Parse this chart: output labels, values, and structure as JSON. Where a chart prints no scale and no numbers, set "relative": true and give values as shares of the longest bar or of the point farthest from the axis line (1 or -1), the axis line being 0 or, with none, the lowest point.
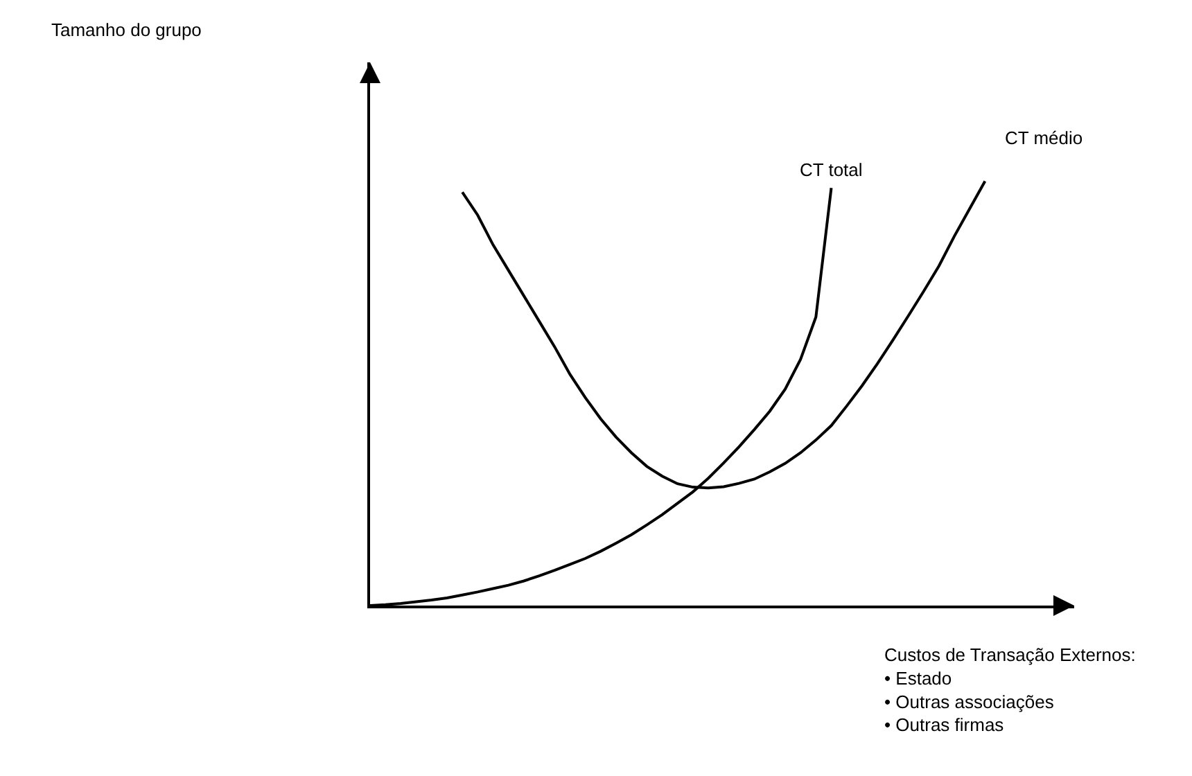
{
  "chart_data": {
    "type": "line",
    "relative": true,
    "annotations": [
      "Tamanho do grupo"
    ],
    "xlabel": "Custos de Transação Externos:\n• Estado\n• Outras associações\n• Outras firmas",
    "legend": false,
    "marker": "none",
    "line_style": "solid",
    "categories": [
      null,
      null,
      null,
      null,
      null,
      null,
      null,
      null,
      null,
      null,
      null,
      null,
      null,
      null,
      null,
      null,
      null,
      null,
      null,
      null,
      null,
      null,
      null,
      null,
      null,
      null,
      null,
      null,
      null,
      null,
      null,
      null,
      null,
      null,
      null,
      null,
      null,
      null,
      null,
      null,
      null
    ],
    "series": [
      {
        "name": "CT total",
        "color": "#000000",
        "values": [
          0,
          0.002,
          0.005,
          0.009,
          0.013,
          0.018,
          0.025,
          0.032,
          0.04,
          0.048,
          0.058,
          0.07,
          0.083,
          0.097,
          0.111,
          0.128,
          0.147,
          0.167,
          0.19,
          0.214,
          0.241,
          0.268,
          0.3,
          0.336,
          0.374,
          0.415,
          0.458,
          0.51,
          0.58,
          0.68,
          0.984,
          null,
          null,
          null,
          null,
          null,
          null,
          null,
          null,
          null,
          null
        ]
      },
      {
        "name": "CT médio",
        "color": "#000000",
        "values": [
          null,
          null,
          null,
          null,
          null,
          null,
          0.974,
          0.92,
          0.85,
          0.79,
          0.73,
          0.67,
          0.61,
          0.545,
          0.49,
          0.44,
          0.397,
          0.36,
          0.328,
          0.305,
          0.287,
          0.279,
          0.277,
          0.28,
          0.288,
          0.298,
          0.315,
          0.335,
          0.36,
          0.39,
          0.424,
          0.47,
          0.518,
          0.57,
          0.625,
          0.682,
          0.74,
          0.8,
          0.87,
          0.935,
          1
        ]
      }
    ]
  }
}
